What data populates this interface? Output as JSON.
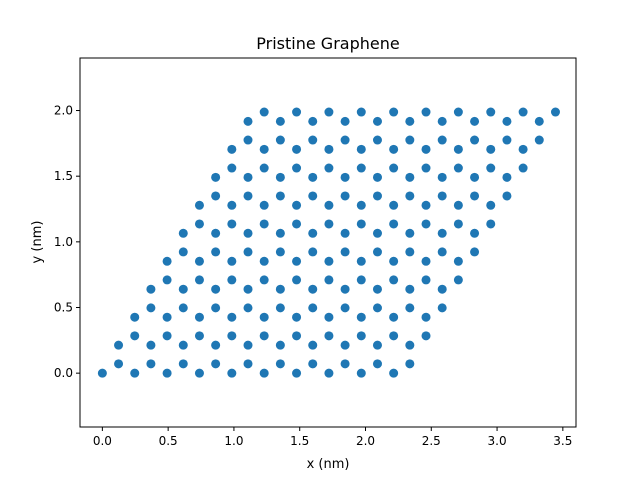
{
  "chart_data": {
    "type": "scatter",
    "title": "Pristine Graphene",
    "xlabel": "x (nm)",
    "ylabel": "y (nm)",
    "xlim": [
      -0.17,
      3.6
    ],
    "ylim": [
      -0.41,
      2.4
    ],
    "xticks": [
      0.0,
      0.5,
      1.0,
      1.5,
      2.0,
      2.5,
      3.0,
      3.5
    ],
    "xtick_labels": [
      "0.0",
      "0.5",
      "1.0",
      "1.5",
      "2.0",
      "2.5",
      "3.0",
      "3.5"
    ],
    "yticks": [
      0.0,
      0.5,
      1.0,
      1.5,
      2.0
    ],
    "ytick_labels": [
      "0.0",
      "0.5",
      "1.0",
      "1.5",
      "2.0"
    ],
    "grid": false,
    "marker_color": "#1f77b4",
    "lattice": {
      "a1": [
        0.246,
        0.0
      ],
      "a2": [
        0.123,
        0.21304
      ],
      "basis": [
        [
          0.0,
          0.0
        ],
        [
          0.123,
          0.07101
        ]
      ],
      "n1": 10,
      "n2": 10
    }
  }
}
